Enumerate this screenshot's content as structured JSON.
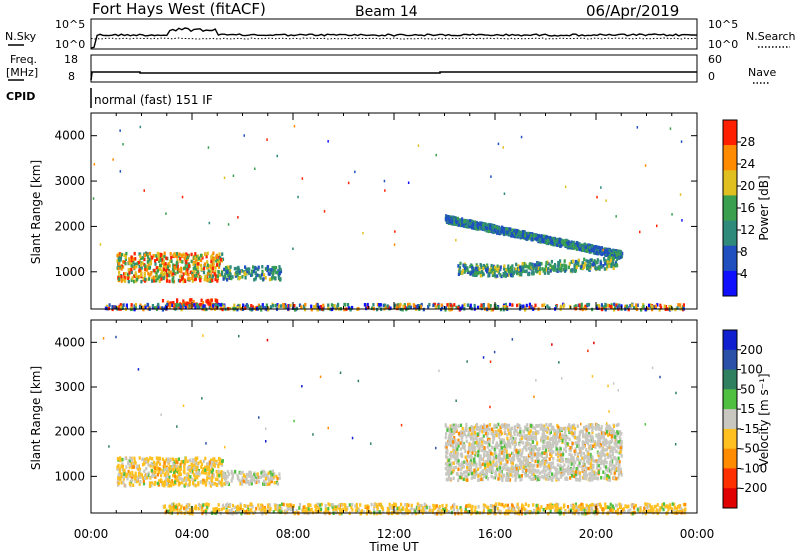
{
  "header": {
    "station": "Fort Hays West (fitACF)",
    "beam": "Beam 14",
    "date": "06/Apr/2019"
  },
  "sky_panel": {
    "left_label": "N.Sky",
    "right_label": "N.Search",
    "left_ticks": [
      "10^5",
      "10^0"
    ],
    "right_ticks": [
      "10^5",
      "10^0"
    ]
  },
  "freq_panel": {
    "left_label_1": "Freq.",
    "left_label_2": "[MHz]",
    "left_ticks": [
      "18",
      "8"
    ],
    "right_ticks": [
      "60",
      "0"
    ],
    "right_label": "Nave"
  },
  "cpid": {
    "label": "CPID",
    "mode": "normal (fast) 151 IF"
  },
  "chart_data": [
    {
      "type": "heatmap",
      "name": "power",
      "ylabel": "Slant Range [km]",
      "xlabel": "",
      "x_ticks": [
        "00:00",
        "04:00",
        "08:00",
        "12:00",
        "16:00",
        "20:00",
        "00:00"
      ],
      "y_ticks": [
        "1000",
        "2000",
        "3000",
        "4000"
      ],
      "y_tick_values": [
        1000,
        2000,
        3000,
        4000
      ],
      "ylim": [
        180,
        4500
      ],
      "colorbar": {
        "label": "Power [dB]",
        "tick_labels": [
          "4",
          "8",
          "12",
          "16",
          "20",
          "24",
          "28"
        ],
        "colors": [
          "#1010ff",
          "#2050c0",
          "#2e8a7a",
          "#3aa050",
          "#e0c020",
          "#ff8c00",
          "#ff2000"
        ]
      },
      "regions": [
        {
          "t_start": 1.0,
          "t_end": 5.2,
          "r_min": 820,
          "r_max": 1450,
          "level": "high"
        },
        {
          "t_start": 5.2,
          "t_end": 7.5,
          "r_min": 860,
          "r_max": 1150,
          "level": "mid"
        },
        {
          "t_start": 2.8,
          "t_end": 5.0,
          "r_min": 250,
          "r_max": 420,
          "level": "max"
        },
        {
          "t_start": 0.5,
          "t_end": 23.5,
          "r_min": 200,
          "r_max": 320,
          "level": "low-mixed"
        },
        {
          "t_start": 14.0,
          "t_end": 21.0,
          "r_min": 1350,
          "r_max": 2200,
          "level": "low"
        },
        {
          "t_start": 14.5,
          "t_end": 20.8,
          "r_min": 950,
          "r_max": 1300,
          "level": "mid"
        }
      ]
    },
    {
      "type": "heatmap",
      "name": "velocity",
      "ylabel": "Slant Range [km]",
      "xlabel": "Time UT",
      "x_ticks": [
        "00:00",
        "04:00",
        "08:00",
        "12:00",
        "16:00",
        "20:00",
        "00:00"
      ],
      "y_ticks": [
        "1000",
        "2000",
        "3000",
        "4000"
      ],
      "y_tick_values": [
        1000,
        2000,
        3000,
        4000
      ],
      "ylim": [
        180,
        4500
      ],
      "colorbar": {
        "label": "Velocity [m s⁻¹]",
        "tick_labels": [
          "200",
          "100",
          "50",
          "15",
          "-15",
          "-50",
          "-100",
          "-200"
        ],
        "colors": [
          "#1020d0",
          "#2a50a8",
          "#2e8060",
          "#50c040",
          "#c8c8c0",
          "#ffc020",
          "#ff8c00",
          "#ff3000",
          "#e00000"
        ]
      },
      "regions": [
        {
          "t_start": 1.0,
          "t_end": 5.2,
          "r_min": 820,
          "r_max": 1450,
          "level": "negative"
        },
        {
          "t_start": 5.2,
          "t_end": 7.5,
          "r_min": 860,
          "r_max": 1150,
          "level": "near-zero"
        },
        {
          "t_start": 2.8,
          "t_end": 23.5,
          "r_min": 200,
          "r_max": 420,
          "level": "negative"
        },
        {
          "t_start": 14.0,
          "t_end": 21.0,
          "r_min": 950,
          "r_max": 2200,
          "level": "near-zero"
        }
      ]
    }
  ]
}
